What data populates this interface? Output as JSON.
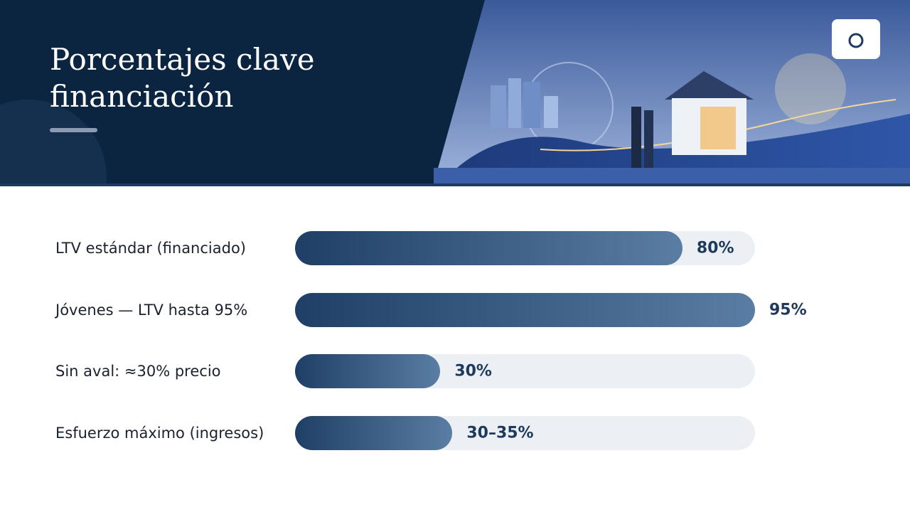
{
  "chart_data": {
    "type": "bar",
    "orientation": "horizontal",
    "title": "Porcentajes clave financiación",
    "categories": [
      "LTV estándar (financiado)",
      "Jóvenes — LTV hasta 95%",
      "Sin aval: ≈30% precio",
      "Esfuerzo máximo (ingresos)"
    ],
    "values": [
      80,
      95,
      30,
      32.5
    ],
    "value_labels": [
      "80%",
      "95%",
      "30%",
      "30–35%"
    ],
    "xlim": [
      0,
      95
    ],
    "color": "#1f3f66"
  }
}
